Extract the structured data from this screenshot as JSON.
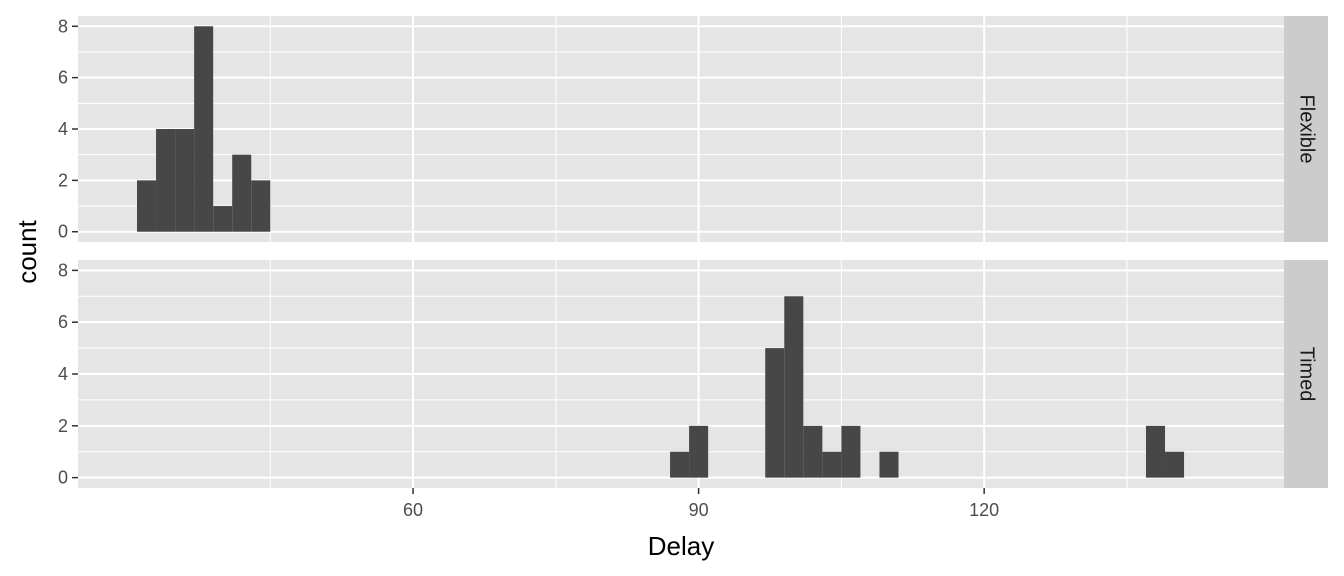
{
  "chart_data": {
    "type": "bar",
    "subtype": "faceted-histogram",
    "xlabel": "Delay",
    "ylabel": "count",
    "xlim": [
      24.8,
      151.5
    ],
    "x_ticks": [
      60,
      90,
      120
    ],
    "x_tick_labels": [
      "60",
      "90",
      "120"
    ],
    "y_ticks": [
      0,
      2,
      4,
      6,
      8
    ],
    "y_tick_labels": [
      "0",
      "2",
      "4",
      "6",
      "8"
    ],
    "grid": true,
    "bin_width": 2,
    "colors": {
      "bar": "#474747",
      "panel_bg": "#e5e5e5",
      "grid": "#ffffff",
      "strip_bg": "#cccccc"
    },
    "facets": [
      {
        "label": "Flexible",
        "ylim": [
          -0.4,
          8.4
        ],
        "bins": [
          {
            "x": 32,
            "count": 2
          },
          {
            "x": 34,
            "count": 4
          },
          {
            "x": 36,
            "count": 4
          },
          {
            "x": 38,
            "count": 8
          },
          {
            "x": 40,
            "count": 1
          },
          {
            "x": 42,
            "count": 3
          },
          {
            "x": 44,
            "count": 2
          }
        ]
      },
      {
        "label": "Timed",
        "ylim": [
          -0.4,
          8.4
        ],
        "bins": [
          {
            "x": 88,
            "count": 1
          },
          {
            "x": 90,
            "count": 2
          },
          {
            "x": 98,
            "count": 5
          },
          {
            "x": 100,
            "count": 7
          },
          {
            "x": 102,
            "count": 2
          },
          {
            "x": 104,
            "count": 1
          },
          {
            "x": 106,
            "count": 2
          },
          {
            "x": 110,
            "count": 1
          },
          {
            "x": 138,
            "count": 2
          },
          {
            "x": 140,
            "count": 1
          }
        ]
      }
    ]
  }
}
